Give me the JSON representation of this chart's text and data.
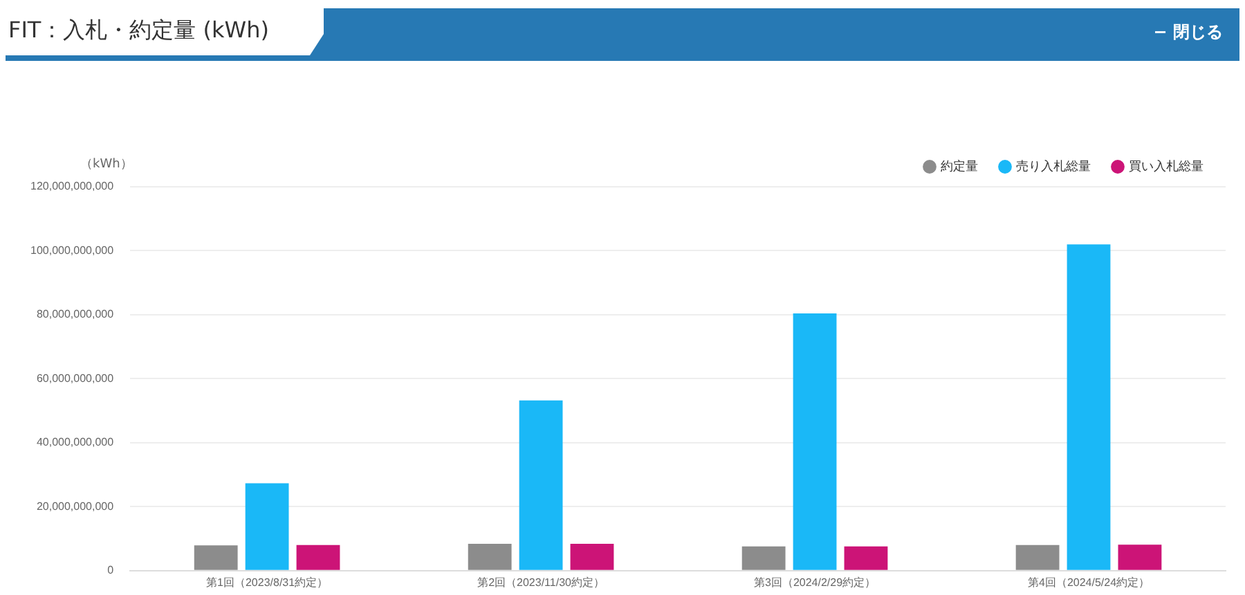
{
  "chart_data": {
    "type": "bar",
    "title": "FIT：入札・約定量 (kWh)",
    "ylabel": "（kWh）",
    "annotations": [
      "− 閉じる"
    ],
    "categories": [
      "第1回（2023/8/31約定）",
      "第2回（2023/11/30約定）",
      "第3回（2024/2/29約定）",
      "第4回（2024/5/24約定）"
    ],
    "series": [
      {
        "name": "約定量",
        "color": "#8c8c8c",
        "values": [
          7900000000,
          8400000000,
          7600000000,
          8000000000
        ]
      },
      {
        "name": "売り入札総量",
        "color": "#1ab8f7",
        "values": [
          27300000000,
          53200000000,
          80400000000,
          102000000000
        ]
      },
      {
        "name": "買い入札総量",
        "color": "#cc1477",
        "values": [
          8000000000,
          8400000000,
          7600000000,
          8100000000
        ]
      }
    ],
    "ylim": [
      0,
      120000000000
    ],
    "yticks": [
      0,
      {
        "value": 20000000000,
        "label": "20,000,000,000"
      },
      {
        "value": 40000000000,
        "label": "40,000,000,000"
      },
      {
        "value": 60000000000,
        "label": "60,000,000,000"
      },
      {
        "value": 80000000000,
        "label": "80,000,000,000"
      },
      {
        "value": 100000000000,
        "label": "100,000,000,000"
      },
      {
        "value": 120000000000,
        "label": "120,000,000,000"
      }
    ],
    "grid": "y",
    "legend": "top right"
  }
}
